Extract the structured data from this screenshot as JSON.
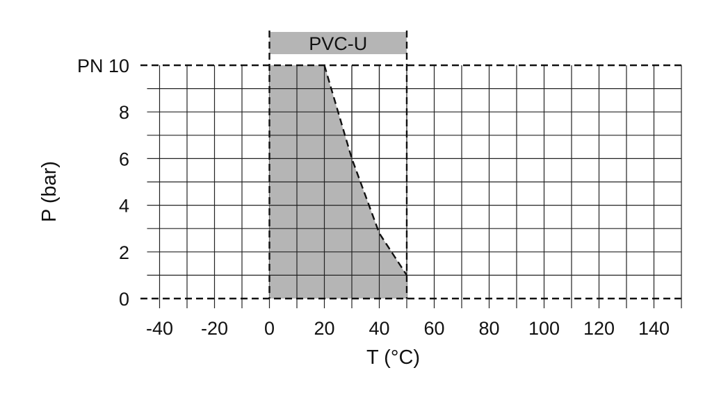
{
  "chart_data": {
    "type": "area",
    "title": "",
    "band_label": "PVC-U",
    "xlabel": "T (°C)",
    "ylabel": "P (bar)",
    "xlim": [
      -50,
      150
    ],
    "ylim": [
      0,
      10
    ],
    "x_ticks": [
      -40,
      -20,
      0,
      20,
      40,
      60,
      80,
      100,
      120,
      140
    ],
    "y_ticks": [
      {
        "value": 0,
        "label": "0"
      },
      {
        "value": 2,
        "label": "2"
      },
      {
        "value": 4,
        "label": "4"
      },
      {
        "value": 6,
        "label": "6"
      },
      {
        "value": 8,
        "label": "8"
      },
      {
        "value": 10,
        "label": "PN 10"
      }
    ],
    "grid": true,
    "x_grid_step": 10,
    "y_grid_step": 1,
    "series": [
      {
        "x": [
          0,
          20,
          30,
          40,
          50
        ],
        "y": [
          10,
          10,
          6,
          2.8,
          1
        ],
        "fill_color": "#b5b5b5"
      }
    ],
    "band_range": [
      0,
      50
    ],
    "band_color": "#b5b5b5"
  }
}
